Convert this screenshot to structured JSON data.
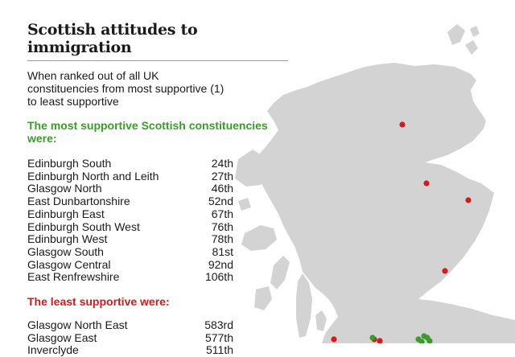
{
  "title": "Scottish attitudes to immigration",
  "intro": "When ranked out of all UK constituencies from most supportive (1) to least supportive",
  "most_heading": "The most supportive Scottish constituencies were:",
  "most": [
    {
      "name": "Edinburgh South",
      "rank": "24th"
    },
    {
      "name": "Edinburgh North and Leith",
      "rank": "27th"
    },
    {
      "name": "Glasgow North",
      "rank": "46th"
    },
    {
      "name": "East Dunbartonshire",
      "rank": "52nd"
    },
    {
      "name": "Edinburgh East",
      "rank": "67th"
    },
    {
      "name": "Edinburgh South West",
      "rank": "76th"
    },
    {
      "name": "Edinburgh West",
      "rank": "78th"
    },
    {
      "name": "Glasgow South",
      "rank": "81st"
    },
    {
      "name": "Glasgow Central",
      "rank": "92nd"
    },
    {
      "name": "East Renfrewshire",
      "rank": "106th"
    }
  ],
  "least_heading": "The least supportive were:",
  "least": [
    {
      "name": "Glasgow North East",
      "rank": "583rd"
    },
    {
      "name": "Glasgow East",
      "rank": "577th"
    },
    {
      "name": "Inverclyde",
      "rank": "511th"
    }
  ],
  "colors": {
    "land": "#d3d3d3",
    "most_supportive_dot": "#3c9b2c",
    "least_supportive_dot": "#d11c1c"
  }
}
